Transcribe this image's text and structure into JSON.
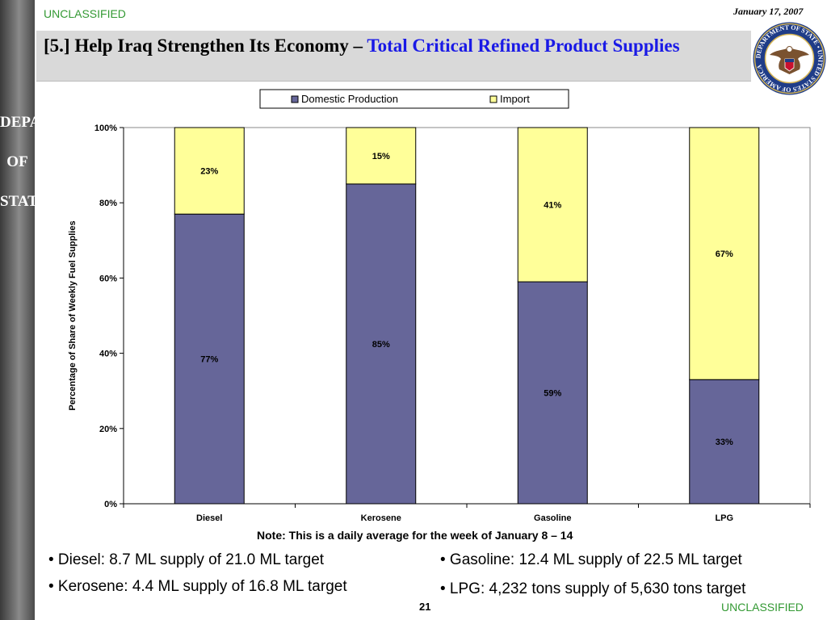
{
  "header": {
    "classification": "UNCLASSIFIED",
    "date": "January 17, 2007",
    "title_part1": "[5.] Help Iraq Strengthen Its Economy – ",
    "title_part2": "Total Critical Refined Product Supplies"
  },
  "sidebar": {
    "text": "DEPARTMENT\n\nOF\n\nSTATE"
  },
  "seal": {
    "text": "DEPARTMENT OF STATE • UNITED STATES OF AMERICA"
  },
  "chart_data": {
    "type": "bar",
    "stacked": true,
    "categories": [
      "Diesel",
      "Kerosene",
      "Gasoline",
      "LPG"
    ],
    "series": [
      {
        "name": "Domestic Production",
        "values": [
          77,
          85,
          59,
          33
        ],
        "labels": [
          "77%",
          "85%",
          "59%",
          "33%"
        ],
        "color": "#666699"
      },
      {
        "name": "Import",
        "values": [
          23,
          15,
          41,
          67
        ],
        "labels": [
          "23%",
          "15%",
          "41%",
          "67%"
        ],
        "color": "#ffff99"
      }
    ],
    "ylabel": "Percentage of Share of Weekly Fuel Supplies",
    "ylim": [
      0,
      100
    ],
    "yticks": [
      "0%",
      "20%",
      "40%",
      "60%",
      "80%",
      "100%"
    ],
    "legend_position": "top",
    "grid": false
  },
  "note": "Note: This is a daily average for the week of January 8 – 14",
  "bullets": [
    "• Diesel: 8.7 ML supply of 21.0 ML target",
    "• Kerosene: 4.4 ML supply of 16.8 ML target",
    "• Gasoline: 12.4 ML supply of 22.5 ML target",
    "• LPG: 4,232 tons supply of 5,630 tons target"
  ],
  "footer": {
    "page_number": "21",
    "classification": "UNCLASSIFIED"
  }
}
